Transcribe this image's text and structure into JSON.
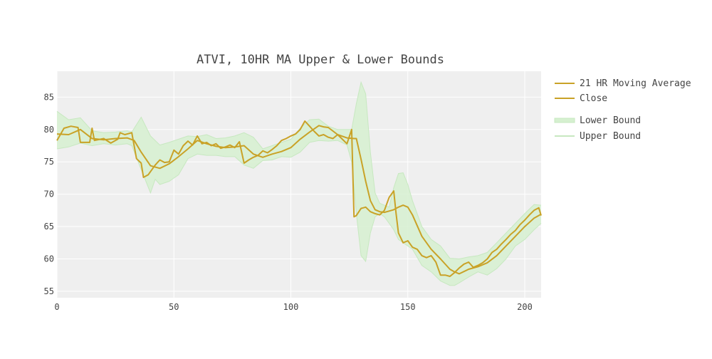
{
  "chart_data": {
    "type": "line",
    "title": "ATVI, 10HR MA Upper & Lower Bounds",
    "xlabel": "",
    "ylabel": "",
    "xlim": [
      0,
      207
    ],
    "ylim": [
      54,
      89
    ],
    "x_ticks": [
      0,
      50,
      100,
      150,
      200
    ],
    "y_ticks": [
      55,
      60,
      65,
      70,
      75,
      80,
      85
    ],
    "grid": true,
    "legend_position": "right",
    "colors": {
      "close": "#c9a227",
      "moving_average": "#c9a227",
      "band_fill": "#d6f0d0",
      "band_line": "#c7e8c0",
      "plot_bg": "#efefef"
    },
    "legend": [
      {
        "label": "21 HR Moving Average",
        "kind": "line"
      },
      {
        "label": "Close",
        "kind": "line"
      },
      {
        "label": "Lower Bound",
        "kind": "fill"
      },
      {
        "label": "Upper Bound",
        "kind": "lightline"
      }
    ],
    "series": [
      {
        "name": "Close",
        "x": [
          0,
          3,
          6,
          9,
          10,
          14,
          15,
          16,
          20,
          23,
          26,
          27,
          29,
          32,
          34,
          36,
          37,
          39,
          42,
          44,
          46,
          48,
          50,
          52,
          54,
          56,
          58,
          60,
          62,
          64,
          66,
          68,
          70,
          72,
          74,
          76,
          78,
          80,
          82,
          84,
          86,
          88,
          90,
          92,
          94,
          96,
          98,
          100,
          102,
          104,
          106,
          108,
          110,
          112,
          114,
          116,
          118,
          120,
          122,
          124,
          126,
          127,
          128,
          130,
          132,
          134,
          136,
          138,
          140,
          142,
          144,
          145,
          146,
          148,
          150,
          152,
          154,
          156,
          158,
          160,
          162,
          164,
          166,
          168,
          170,
          172,
          174,
          176,
          178,
          180,
          182,
          184,
          186,
          188,
          190,
          192,
          194,
          196,
          198,
          200,
          202,
          204,
          206,
          207
        ],
        "y": [
          78.3,
          80.2,
          80.5,
          80.3,
          78.0,
          78.0,
          80.2,
          78.3,
          78.6,
          77.9,
          78.5,
          79.5,
          79.2,
          79.5,
          75.5,
          74.8,
          72.6,
          73.0,
          74.5,
          75.3,
          74.9,
          75.0,
          76.8,
          76.2,
          77.5,
          78.2,
          77.6,
          79.0,
          77.8,
          78.0,
          77.5,
          77.8,
          77.1,
          77.3,
          77.6,
          77.2,
          78.1,
          74.8,
          75.3,
          75.7,
          76.0,
          76.7,
          76.4,
          76.9,
          77.5,
          78.3,
          78.6,
          79.0,
          79.3,
          80.0,
          81.3,
          80.5,
          79.7,
          79.0,
          79.2,
          78.8,
          78.6,
          79.2,
          78.5,
          77.8,
          80.0,
          66.5,
          66.7,
          67.8,
          68.0,
          67.3,
          67.0,
          66.8,
          67.5,
          69.5,
          70.5,
          67.0,
          64.0,
          62.5,
          62.8,
          61.8,
          61.5,
          60.5,
          60.2,
          60.5,
          59.5,
          57.5,
          57.5,
          57.3,
          57.9,
          58.6,
          59.2,
          59.5,
          58.7,
          59.0,
          59.4,
          60.0,
          61.0,
          61.5,
          62.3,
          63.0,
          63.8,
          64.4,
          65.3,
          66.0,
          66.8,
          67.5,
          67.9,
          66.7
        ]
      },
      {
        "name": "21 HR Moving Average",
        "x": [
          0,
          5,
          10,
          15,
          20,
          25,
          30,
          33,
          36,
          40,
          44,
          48,
          52,
          56,
          60,
          64,
          68,
          72,
          76,
          80,
          84,
          88,
          92,
          96,
          100,
          104,
          108,
          112,
          114,
          116,
          120,
          124,
          127,
          128,
          130,
          132,
          134,
          136,
          138,
          140,
          142,
          144,
          146,
          148,
          150,
          152,
          156,
          160,
          164,
          168,
          170,
          172,
          176,
          180,
          184,
          188,
          192,
          196,
          200,
          204,
          207
        ],
        "y": [
          79.3,
          79.2,
          80.0,
          78.6,
          78.4,
          78.6,
          78.7,
          78.3,
          76.5,
          74.4,
          74.0,
          74.7,
          75.8,
          77.0,
          78.3,
          77.8,
          77.4,
          77.2,
          77.3,
          77.5,
          76.2,
          75.7,
          76.2,
          76.6,
          77.2,
          78.5,
          79.6,
          80.6,
          80.4,
          80.3,
          79.2,
          78.7,
          78.6,
          78.6,
          75.4,
          72.0,
          69.0,
          67.6,
          67.3,
          67.2,
          67.4,
          67.6,
          68.0,
          68.3,
          68.0,
          66.8,
          63.5,
          61.5,
          60.0,
          58.4,
          58.0,
          57.7,
          58.4,
          58.8,
          59.4,
          60.5,
          62.0,
          63.5,
          65.0,
          66.3,
          66.9
        ]
      },
      {
        "name": "Upper Bound",
        "x": [
          0,
          5,
          10,
          15,
          20,
          25,
          30,
          32,
          36,
          40,
          44,
          48,
          52,
          56,
          60,
          64,
          68,
          72,
          76,
          80,
          84,
          88,
          92,
          96,
          100,
          104,
          108,
          112,
          116,
          120,
          124,
          126,
          128,
          130,
          132,
          134,
          136,
          138,
          140,
          142,
          144,
          146,
          148,
          150,
          152,
          156,
          160,
          164,
          168,
          172,
          176,
          180,
          184,
          188,
          192,
          196,
          200,
          204,
          207
        ],
        "y": [
          82.8,
          81.5,
          81.8,
          79.8,
          79.5,
          79.6,
          79.8,
          79.6,
          81.9,
          79.0,
          77.6,
          78.0,
          78.5,
          79.0,
          78.9,
          79.2,
          78.6,
          78.7,
          79.0,
          79.5,
          78.8,
          77.0,
          77.5,
          78.0,
          78.5,
          80.2,
          81.5,
          81.6,
          80.5,
          80.0,
          80.0,
          80.0,
          84.0,
          87.3,
          85.5,
          76.5,
          70.2,
          68.6,
          68.3,
          68.0,
          71.0,
          73.2,
          73.3,
          71.5,
          69.0,
          65.0,
          63.0,
          62.0,
          60.1,
          60.0,
          60.3,
          60.5,
          61.0,
          62.5,
          64.0,
          65.5,
          67.0,
          68.4,
          68.3
        ]
      },
      {
        "name": "Lower Bound",
        "x": [
          0,
          5,
          10,
          15,
          20,
          25,
          30,
          32,
          36,
          40,
          42,
          44,
          48,
          52,
          56,
          60,
          64,
          68,
          72,
          76,
          80,
          84,
          88,
          92,
          96,
          100,
          104,
          108,
          112,
          116,
          120,
          124,
          126,
          128,
          130,
          132,
          134,
          136,
          138,
          140,
          142,
          144,
          146,
          148,
          150,
          152,
          156,
          160,
          164,
          168,
          170,
          172,
          176,
          180,
          184,
          188,
          192,
          196,
          200,
          204,
          207
        ],
        "y": [
          77.0,
          77.3,
          77.9,
          77.5,
          77.8,
          77.6,
          77.8,
          77.5,
          73.8,
          70.2,
          72.3,
          71.5,
          72.0,
          73.0,
          75.5,
          76.2,
          76.0,
          76.0,
          75.8,
          75.8,
          74.5,
          74.0,
          75.2,
          75.3,
          75.8,
          75.7,
          76.5,
          78.0,
          78.3,
          78.2,
          78.3,
          77.6,
          75.0,
          67.0,
          60.5,
          59.6,
          64.0,
          66.5,
          67.0,
          66.5,
          65.5,
          64.5,
          63.0,
          62.5,
          62.0,
          61.5,
          59.0,
          58.0,
          56.6,
          55.9,
          55.9,
          56.3,
          57.2,
          58.0,
          57.5,
          58.5,
          60.0,
          62.0,
          63.0,
          64.5,
          65.5
        ]
      }
    ]
  }
}
